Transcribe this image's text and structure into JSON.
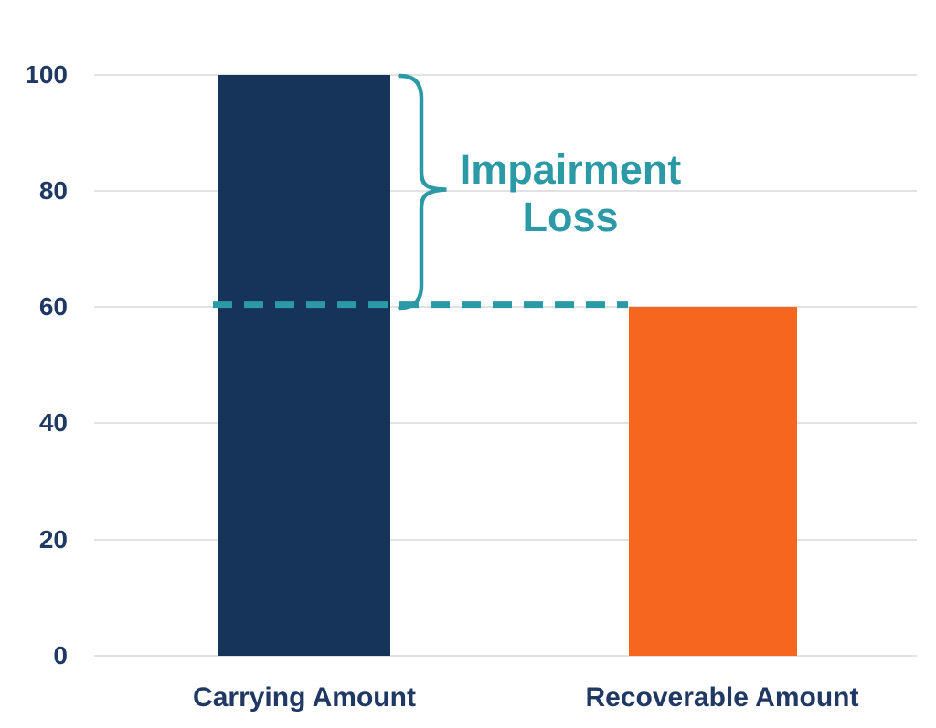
{
  "chart_data": {
    "type": "bar",
    "title": "",
    "xlabel": "",
    "ylabel": "",
    "categories": [
      "Carrying Amount",
      "Recoverable Amount"
    ],
    "values": [
      100,
      60
    ],
    "bar_colors": [
      "#16335A",
      "#F6661F"
    ],
    "ylim": [
      0,
      100
    ],
    "y_ticks": [
      0,
      20,
      40,
      60,
      80,
      100
    ],
    "grid": "horizontal",
    "legend": "none",
    "gridline_color": "#E2E2E2",
    "axis_text_color": "#1F3864",
    "annotation": {
      "line1": "Impairment",
      "line2": "Loss",
      "color": "#2B9AA6",
      "dashed_line_value": 60,
      "brace_span": [
        60,
        100
      ]
    }
  }
}
